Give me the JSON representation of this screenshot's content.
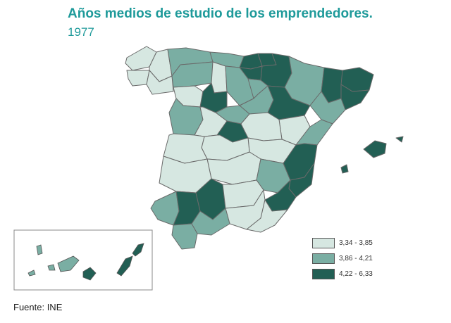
{
  "title": "Años medios de estudio de los emprendedores.",
  "subtitle": "1977",
  "colors": {
    "low": "#d6e7e1",
    "mid": "#7aaea3",
    "high": "#225f54",
    "border": "#6a6a6a"
  },
  "legend": [
    {
      "label": "3,34 - 3,85",
      "level": "low"
    },
    {
      "label": "3,86 - 4,21",
      "level": "mid"
    },
    {
      "label": "4,22 - 6,33",
      "level": "high"
    }
  ],
  "source": "Fuente: INE"
}
